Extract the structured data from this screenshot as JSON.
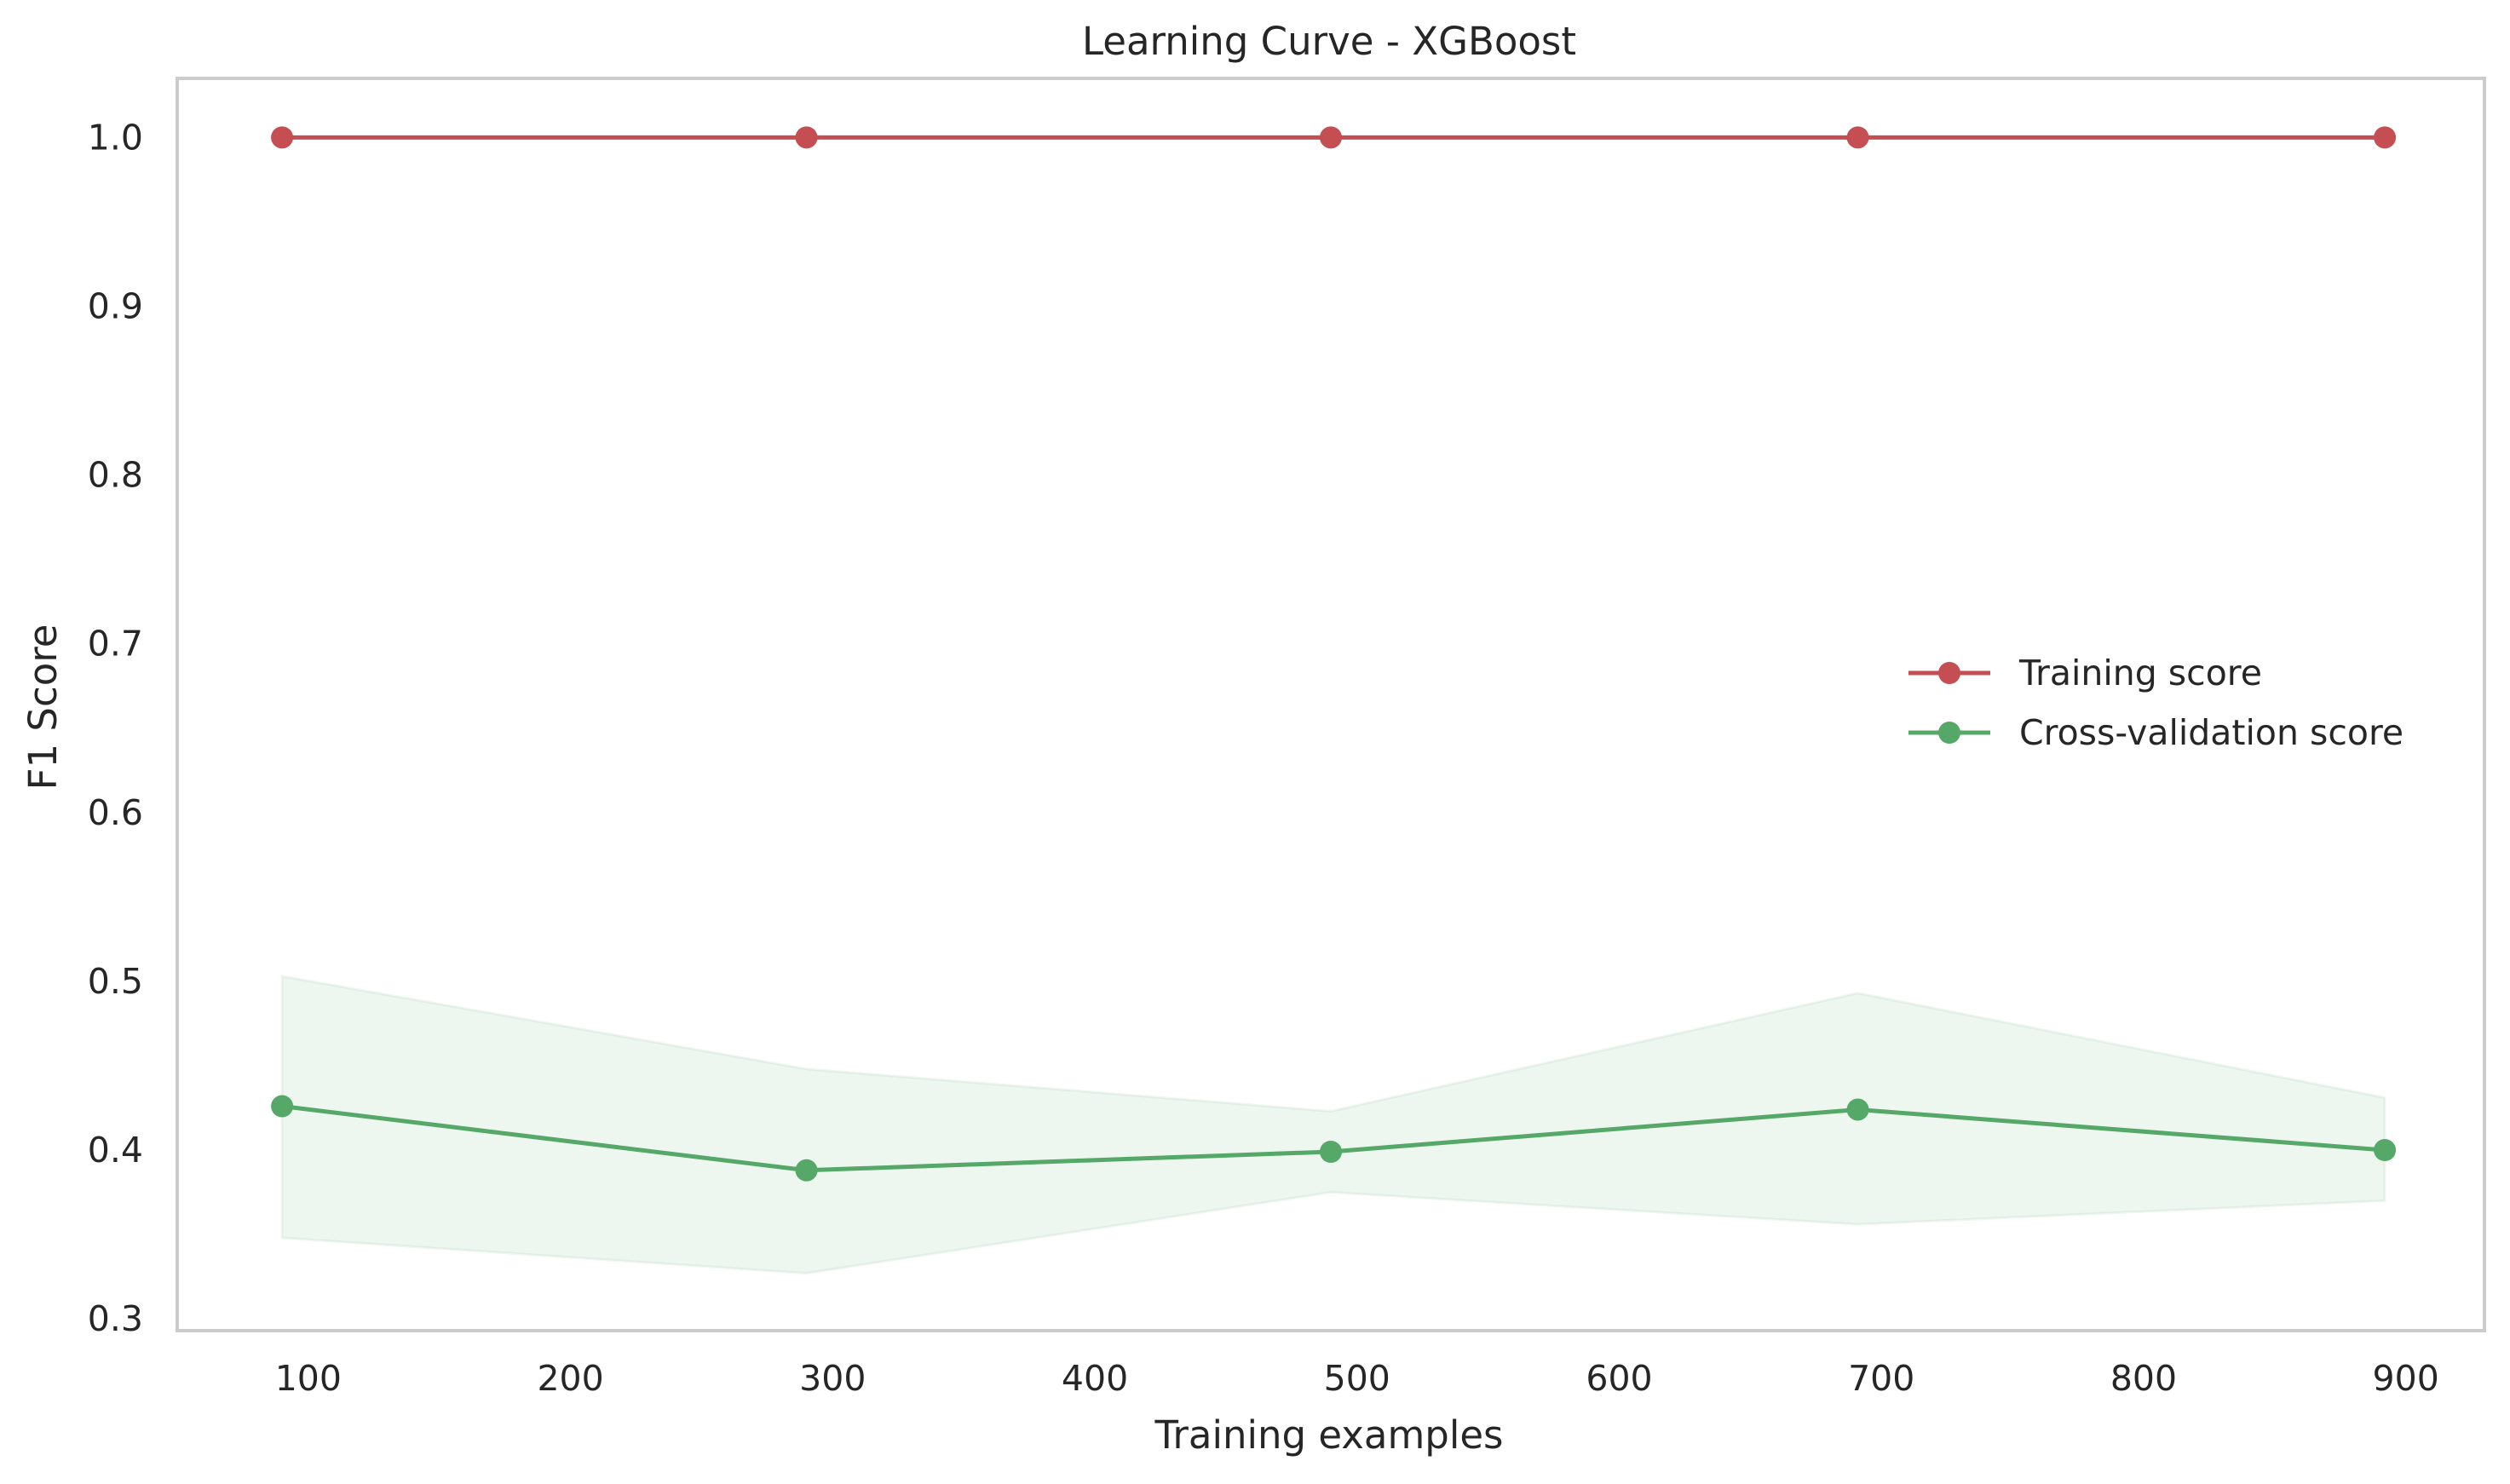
{
  "chart_data": {
    "type": "line",
    "title": "Learning Curve - XGBoost",
    "xlabel": "Training examples",
    "ylabel": "F1 Score",
    "xlim": [
      50,
      930
    ],
    "ylim": [
      0.293,
      1.035
    ],
    "x_ticks": [
      100,
      200,
      300,
      400,
      500,
      600,
      700,
      800,
      900
    ],
    "y_ticks": [
      0.3,
      0.4,
      0.5,
      0.6,
      0.7,
      0.8,
      0.9,
      1.0
    ],
    "x_tick_labels": [
      "100",
      "200",
      "300",
      "400",
      "500",
      "600",
      "700",
      "800",
      "900"
    ],
    "y_tick_labels": [
      "0.3",
      "0.4",
      "0.5",
      "0.6",
      "0.7",
      "0.8",
      "0.9",
      "1.0"
    ],
    "grid": false,
    "legend_position": "center-right",
    "x": [
      90,
      290,
      490,
      691,
      892
    ],
    "series": [
      {
        "name": "Training score",
        "color": "#c44e52",
        "marker": "circle",
        "values": [
          1.0,
          1.0,
          1.0,
          1.0,
          1.0
        ],
        "band_lower": [
          1.0,
          1.0,
          1.0,
          1.0,
          1.0
        ],
        "band_upper": [
          1.0,
          1.0,
          1.0,
          1.0,
          1.0
        ]
      },
      {
        "name": "Cross-validation score",
        "color": "#55a868",
        "marker": "circle",
        "values": [
          0.426,
          0.388,
          0.399,
          0.424,
          0.4
        ],
        "band_lower": [
          0.348,
          0.327,
          0.375,
          0.356,
          0.37
        ],
        "band_upper": [
          0.503,
          0.448,
          0.423,
          0.493,
          0.431
        ]
      }
    ]
  }
}
